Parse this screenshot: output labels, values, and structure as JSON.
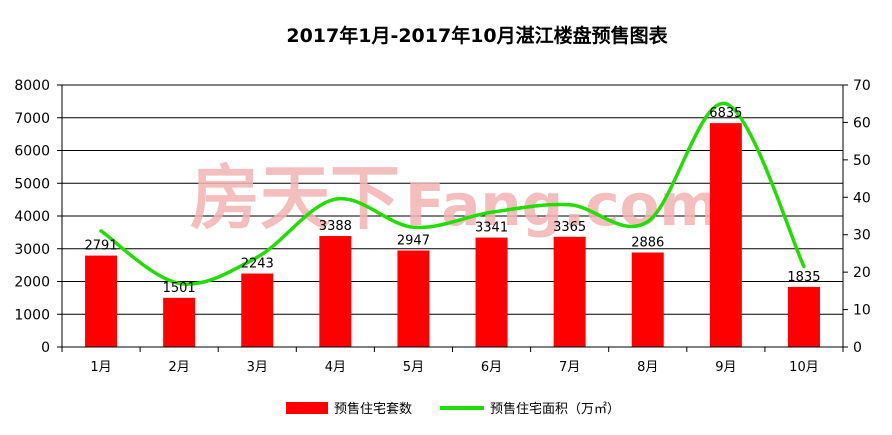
{
  "chart_data": {
    "type": "bar",
    "title": "2017年1月-2017年10月湛江楼盘预售图表",
    "categories": [
      "1月",
      "2月",
      "3月",
      "4月",
      "5月",
      "6月",
      "7月",
      "8月",
      "9月",
      "10月"
    ],
    "series": [
      {
        "name": "预售住宅套数",
        "type": "bar",
        "axis": "left",
        "color": "#ff0000",
        "values": [
          2791,
          1501,
          2243,
          3388,
          2947,
          3341,
          3365,
          2886,
          6835,
          1835
        ]
      },
      {
        "name": "预售住宅面积（万㎡）",
        "type": "line",
        "axis": "right",
        "color": "#22dd00",
        "values": [
          31,
          17,
          24,
          39.5,
          32,
          36,
          38,
          33.5,
          65,
          21.5
        ]
      }
    ],
    "y_left": {
      "min": 0,
      "max": 8000,
      "step": 1000
    },
    "y_right": {
      "min": 0,
      "max": 70,
      "step": 10
    },
    "grid": true,
    "legend_position": "bottom",
    "watermark": {
      "text_cn": "房天下",
      "text_en": "Fang.com",
      "color": "#f3b3b3"
    }
  }
}
